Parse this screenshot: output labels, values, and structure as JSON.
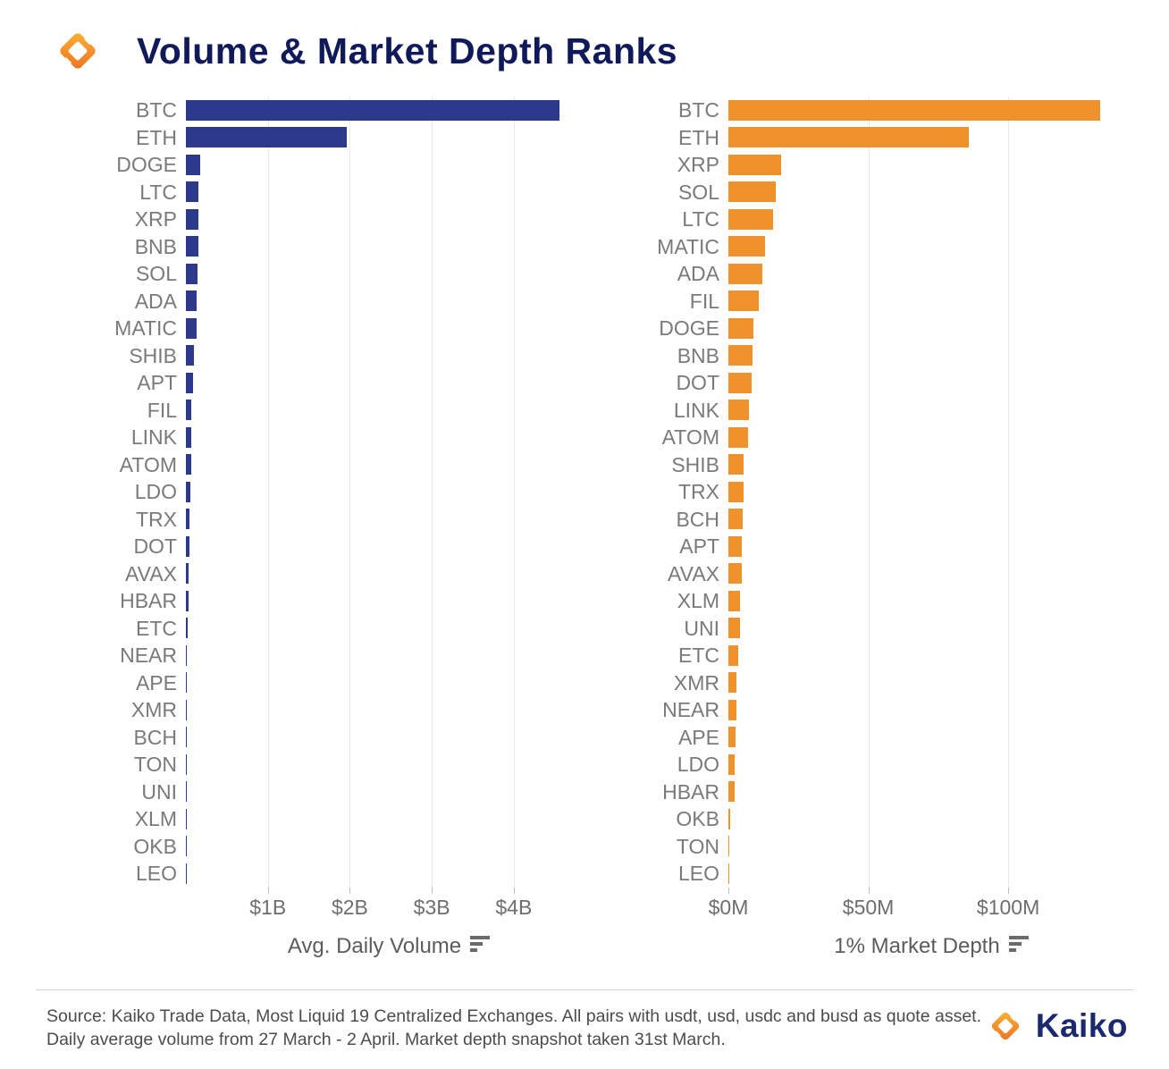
{
  "header": {
    "title": "Volume & Market Depth Ranks"
  },
  "icons": {
    "brand_mark": "kaiko-mark",
    "axis_sort": "sort-descending"
  },
  "colors": {
    "volume_bar": "#2d3a8c",
    "depth_bar": "#f0922c",
    "title_navy": "#101a5a",
    "brand_navy": "#1b2a6e",
    "brand_orange_light": "#f9b233",
    "brand_orange_dark": "#ee7225",
    "category_label_gray": "#7a7a7a",
    "gridline": "#e9e9e9"
  },
  "chart_data": [
    {
      "type": "bar",
      "orientation": "horizontal",
      "xlabel": "Avg. Daily Volume",
      "unit": "USD billions",
      "bar_color": "#2d3a8c",
      "xlim": [
        0,
        4.95
      ],
      "grid": true,
      "categories": [
        "BTC",
        "ETH",
        "DOGE",
        "LTC",
        "XRP",
        "BNB",
        "SOL",
        "ADA",
        "MATIC",
        "SHIB",
        "APT",
        "FIL",
        "LINK",
        "ATOM",
        "LDO",
        "TRX",
        "DOT",
        "AVAX",
        "HBAR",
        "ETC",
        "NEAR",
        "APE",
        "XMR",
        "BCH",
        "TON",
        "UNI",
        "XLM",
        "OKB",
        "LEO"
      ],
      "values": [
        4.56,
        1.96,
        0.17,
        0.155,
        0.15,
        0.148,
        0.145,
        0.135,
        0.13,
        0.1,
        0.09,
        0.07,
        0.065,
        0.06,
        0.05,
        0.042,
        0.04,
        0.037,
        0.035,
        0.02,
        0.016,
        0.014,
        0.013,
        0.012,
        0.011,
        0.01,
        0.009,
        0.008,
        0.006
      ],
      "ticks": [
        {
          "value": 1,
          "label": "$1B"
        },
        {
          "value": 2,
          "label": "$2B"
        },
        {
          "value": 3,
          "label": "$3B"
        },
        {
          "value": 4,
          "label": "$4B"
        }
      ]
    },
    {
      "type": "bar",
      "orientation": "horizontal",
      "xlabel": "1% Market Depth",
      "unit": "USD millions",
      "bar_color": "#f0922c",
      "xlim": [
        0,
        145
      ],
      "grid": true,
      "categories": [
        "BTC",
        "ETH",
        "XRP",
        "SOL",
        "LTC",
        "MATIC",
        "ADA",
        "FIL",
        "DOGE",
        "BNB",
        "DOT",
        "LINK",
        "ATOM",
        "SHIB",
        "TRX",
        "BCH",
        "APT",
        "AVAX",
        "XLM",
        "UNI",
        "ETC",
        "XMR",
        "NEAR",
        "APE",
        "LDO",
        "HBAR",
        "OKB",
        "TON",
        "LEO"
      ],
      "values": [
        133,
        86,
        19,
        17,
        16,
        13,
        12,
        11,
        9.0,
        8.7,
        8.4,
        7.4,
        7.1,
        5.5,
        5.3,
        5.0,
        4.9,
        4.7,
        4.2,
        4.0,
        3.5,
        3.0,
        2.9,
        2.4,
        2.2,
        2.1,
        0.5,
        0.4,
        0.3
      ],
      "ticks": [
        {
          "value": 0,
          "label": "$0M"
        },
        {
          "value": 50,
          "label": "$50M"
        },
        {
          "value": 100,
          "label": "$100M"
        }
      ]
    }
  ],
  "footer": {
    "source_line1": "Source: Kaiko Trade Data, Most Liquid 19 Centralized Exchanges. All pairs with usdt, usd, usdc and busd as quote asset.",
    "source_line2": "Daily average volume from 27 March - 2 April. Market depth snapshot taken 31st March.",
    "brand": "Kaiko"
  }
}
